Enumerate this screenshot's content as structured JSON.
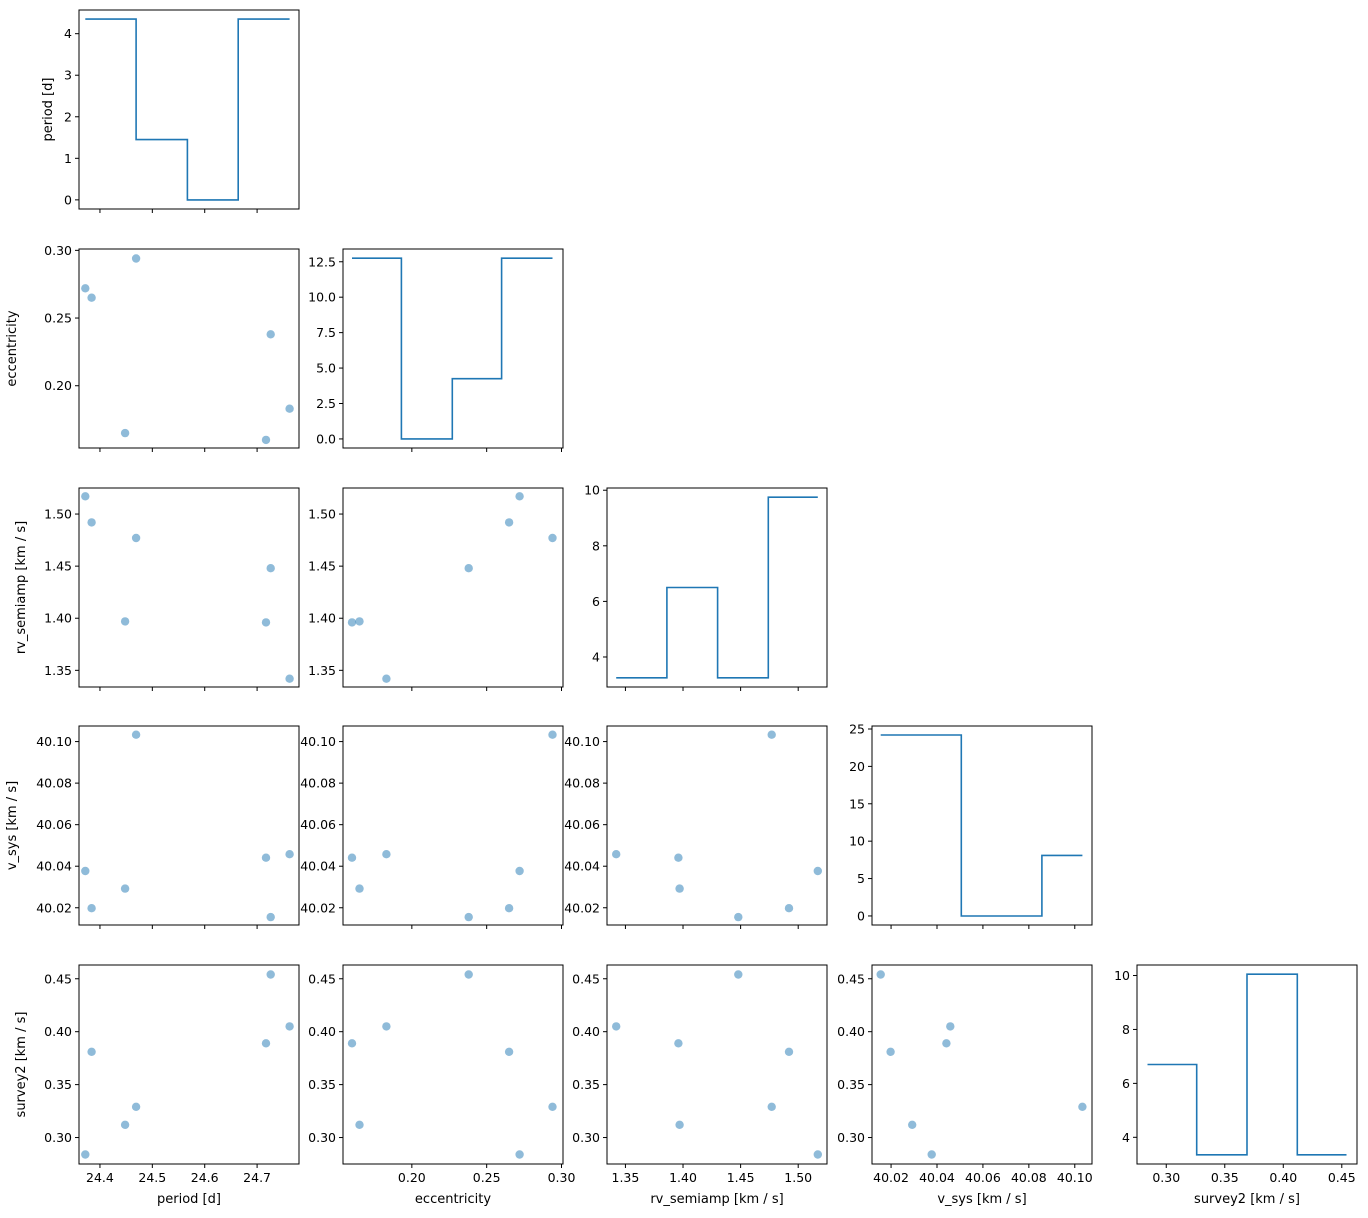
{
  "chart_data": {
    "type": "scatter",
    "layout": "corner-plot",
    "colors": {
      "histogram": "#1f77b4",
      "points": "#1f77b4",
      "point_alpha": 0.5
    },
    "variables": [
      {
        "name": "period",
        "label": "period [d]",
        "lim": [
          24.36,
          24.78
        ],
        "ticks": [
          24.4,
          24.5,
          24.6,
          24.7
        ],
        "tick_labels": [
          "24.4",
          "24.5",
          "24.6",
          "24.7"
        ],
        "samples": [
          24.372,
          24.384,
          24.448,
          24.469,
          24.717,
          24.726,
          24.762
        ]
      },
      {
        "name": "eccentricity",
        "label": "eccentricity",
        "lim": [
          0.154,
          0.301
        ],
        "ticks": [
          0.2,
          0.25,
          0.3
        ],
        "tick_labels": [
          "0.20",
          "0.25",
          "0.30"
        ],
        "samples": [
          0.272,
          0.265,
          0.165,
          0.294,
          0.16,
          0.238,
          0.183
        ]
      },
      {
        "name": "rv_semiamp",
        "label": "rv_semiamp [km / s]",
        "lim": [
          1.334,
          1.525
        ],
        "ticks": [
          1.35,
          1.4,
          1.45,
          1.5
        ],
        "tick_labels": [
          "1.35",
          "1.40",
          "1.45",
          "1.50"
        ],
        "samples": [
          1.517,
          1.492,
          1.397,
          1.477,
          1.396,
          1.448,
          1.342
        ]
      },
      {
        "name": "v_sys",
        "label": "v_sys [km / s]",
        "lim": [
          40.0117,
          40.1075
        ],
        "ticks": [
          40.02,
          40.04,
          40.06,
          40.08,
          40.1
        ],
        "tick_labels": [
          "40.02",
          "40.04",
          "40.06",
          "40.08",
          "40.10"
        ],
        "samples": [
          40.0377,
          40.0198,
          40.0292,
          40.1033,
          40.0441,
          40.0155,
          40.0458
        ]
      },
      {
        "name": "survey2",
        "label": "survey2 [km / s]",
        "lim": [
          0.275,
          0.463
        ],
        "ticks": [
          0.3,
          0.35,
          0.4,
          0.45
        ],
        "tick_labels": [
          "0.30",
          "0.35",
          "0.40",
          "0.45"
        ],
        "samples": [
          0.284,
          0.381,
          0.312,
          0.329,
          0.389,
          0.454,
          0.405
        ]
      }
    ],
    "histograms": [
      {
        "variable": "period",
        "bin_edges": [
          24.372,
          24.469,
          24.567,
          24.664,
          24.762
        ],
        "values": [
          4.35,
          1.45,
          0.0,
          4.35
        ],
        "ylim": [
          -0.22,
          4.57
        ],
        "yticks": [
          0,
          1,
          2,
          3,
          4
        ],
        "ytick_labels": [
          "0",
          "1",
          "2",
          "3",
          "4"
        ]
      },
      {
        "variable": "eccentricity",
        "bin_edges": [
          0.16,
          0.193,
          0.227,
          0.26,
          0.294
        ],
        "values": [
          12.75,
          0.0,
          4.25,
          12.75
        ],
        "ylim": [
          -0.64,
          13.4
        ],
        "yticks": [
          0,
          2.5,
          5,
          7.5,
          10,
          12.5
        ],
        "ytick_labels": [
          "0.0",
          "2.5",
          "5.0",
          "7.5",
          "10.0",
          "12.5"
        ]
      },
      {
        "variable": "rv_semiamp",
        "bin_edges": [
          1.342,
          1.386,
          1.43,
          1.474,
          1.517
        ],
        "values": [
          3.25,
          6.5,
          3.25,
          9.75
        ],
        "ylim": [
          2.92,
          10.08
        ],
        "yticks": [
          4,
          6,
          8,
          10
        ],
        "ytick_labels": [
          "4",
          "6",
          "8",
          "10"
        ]
      },
      {
        "variable": "v_sys",
        "bin_edges": [
          40.0155,
          40.0506,
          40.0857,
          40.1033
        ],
        "values": [
          24.2,
          0.0,
          8.1
        ],
        "ylim": [
          -1.21,
          25.4
        ],
        "yticks": [
          0,
          5,
          10,
          15,
          20,
          25
        ],
        "ytick_labels": [
          "0",
          "5",
          "10",
          "15",
          "20",
          "25"
        ]
      },
      {
        "variable": "survey2",
        "bin_edges": [
          0.284,
          0.326,
          0.369,
          0.412,
          0.454
        ],
        "values": [
          6.7,
          3.35,
          10.05,
          3.35
        ],
        "ylim": [
          3.01,
          10.39
        ],
        "yticks": [
          4,
          6,
          8,
          10
        ],
        "ytick_labels": [
          "4",
          "6",
          "8",
          "10"
        ]
      }
    ],
    "grid": false,
    "legend": "none"
  }
}
